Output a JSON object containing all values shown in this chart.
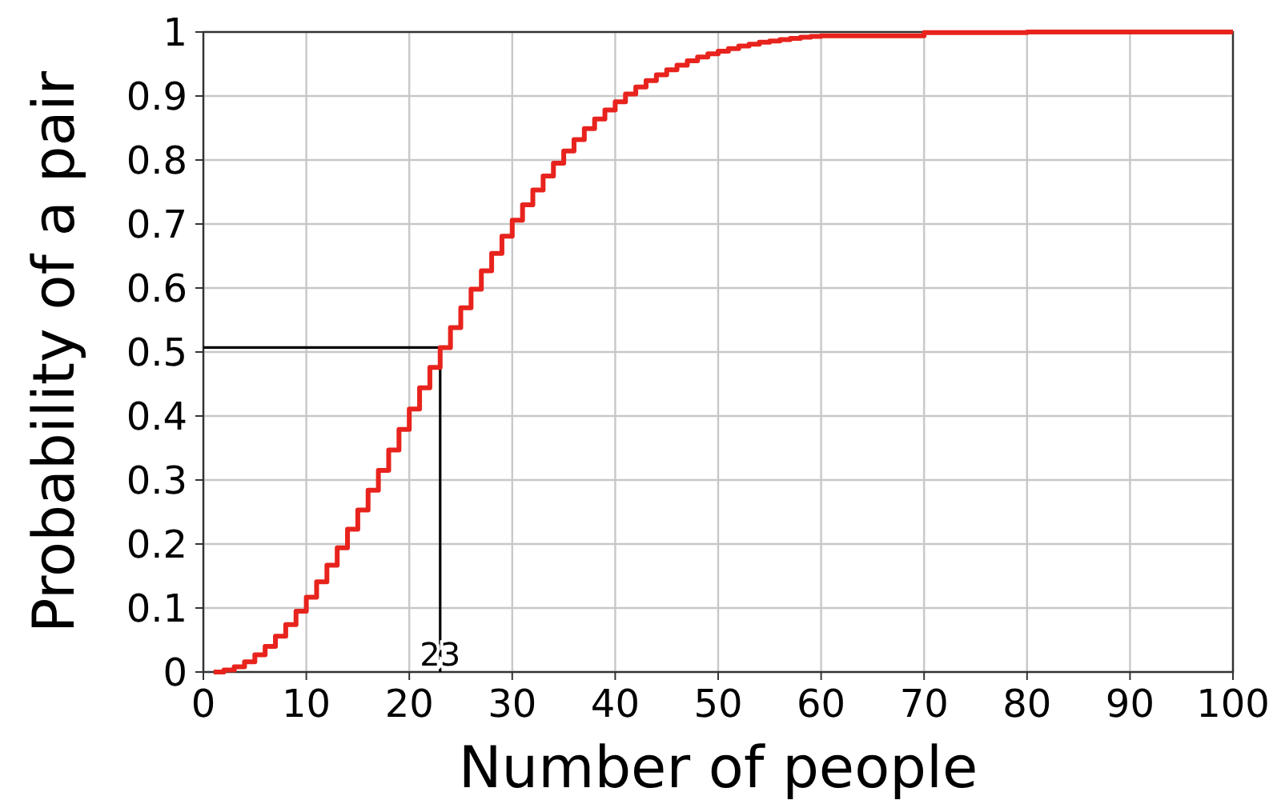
{
  "chart_data": {
    "type": "step",
    "xlabel": "Number of people",
    "ylabel": "Probability of a pair",
    "x": [
      1,
      2,
      3,
      4,
      5,
      6,
      7,
      8,
      9,
      10,
      11,
      12,
      13,
      14,
      15,
      16,
      17,
      18,
      19,
      20,
      21,
      22,
      23,
      24,
      25,
      26,
      27,
      28,
      29,
      30,
      31,
      32,
      33,
      34,
      35,
      36,
      37,
      38,
      39,
      40,
      41,
      42,
      43,
      44,
      45,
      46,
      47,
      48,
      49,
      50,
      51,
      52,
      53,
      54,
      55,
      56,
      57,
      58,
      59,
      60,
      70,
      80,
      90,
      100
    ],
    "series": [
      {
        "color": "#e8231d",
        "values": [
          0,
          0.003,
          0.008,
          0.016,
          0.027,
          0.04,
          0.056,
          0.074,
          0.095,
          0.117,
          0.141,
          0.167,
          0.194,
          0.223,
          0.253,
          0.284,
          0.315,
          0.347,
          0.379,
          0.411,
          0.444,
          0.476,
          0.507,
          0.538,
          0.569,
          0.598,
          0.627,
          0.654,
          0.681,
          0.706,
          0.73,
          0.753,
          0.775,
          0.795,
          0.814,
          0.832,
          0.849,
          0.864,
          0.878,
          0.891,
          0.903,
          0.914,
          0.924,
          0.933,
          0.941,
          0.948,
          0.955,
          0.961,
          0.966,
          0.97,
          0.974,
          0.978,
          0.981,
          0.984,
          0.986,
          0.988,
          0.99,
          0.992,
          0.993,
          0.994,
          0.999,
          1,
          1,
          1
        ]
      }
    ],
    "xlim": [
      0,
      100
    ],
    "ylim": [
      0,
      1
    ],
    "xticks": [
      0,
      10,
      20,
      30,
      40,
      50,
      60,
      70,
      80,
      90,
      100
    ],
    "yticks": [
      0,
      0.1,
      0.2,
      0.3,
      0.4,
      0.5,
      0.6,
      0.7,
      0.8,
      0.9,
      1
    ],
    "grid": true,
    "ref_lines": [
      {
        "axis": "x",
        "value": 23,
        "label": "23",
        "color": "#000000"
      },
      {
        "axis": "y",
        "value": 0.507,
        "color": "#000000"
      }
    ]
  }
}
